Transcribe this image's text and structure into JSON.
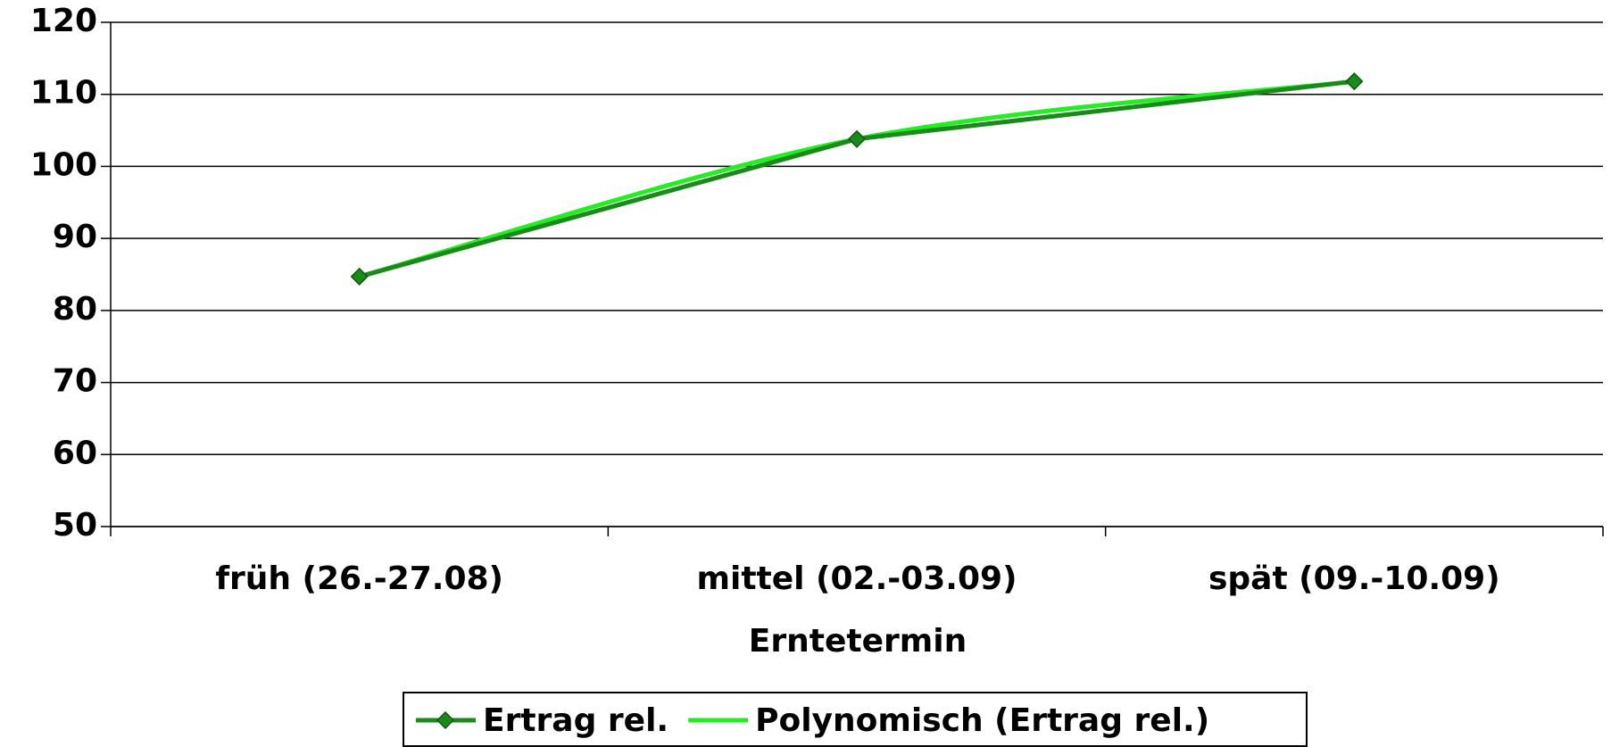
{
  "chart_data": {
    "type": "line",
    "x_label": "Erntetermin",
    "categories": [
      "früh (26.-27.08)",
      "mittel (02.-03.09)",
      "spät (09.-10.09)"
    ],
    "series": [
      {
        "name": "Ertrag rel.",
        "color": "#1a8a1a",
        "values": [
          84.7,
          103.8,
          111.8
        ],
        "marker": "diamond"
      },
      {
        "name": "Polynomisch (Ertrag rel.)",
        "color": "#22ee22",
        "values": [
          84.7,
          103.8,
          111.8
        ],
        "smooth": true
      }
    ],
    "ylim": [
      50,
      120
    ],
    "yticks": [
      50,
      60,
      70,
      80,
      90,
      100,
      110,
      120
    ],
    "grid": true,
    "legend": "bottom"
  }
}
